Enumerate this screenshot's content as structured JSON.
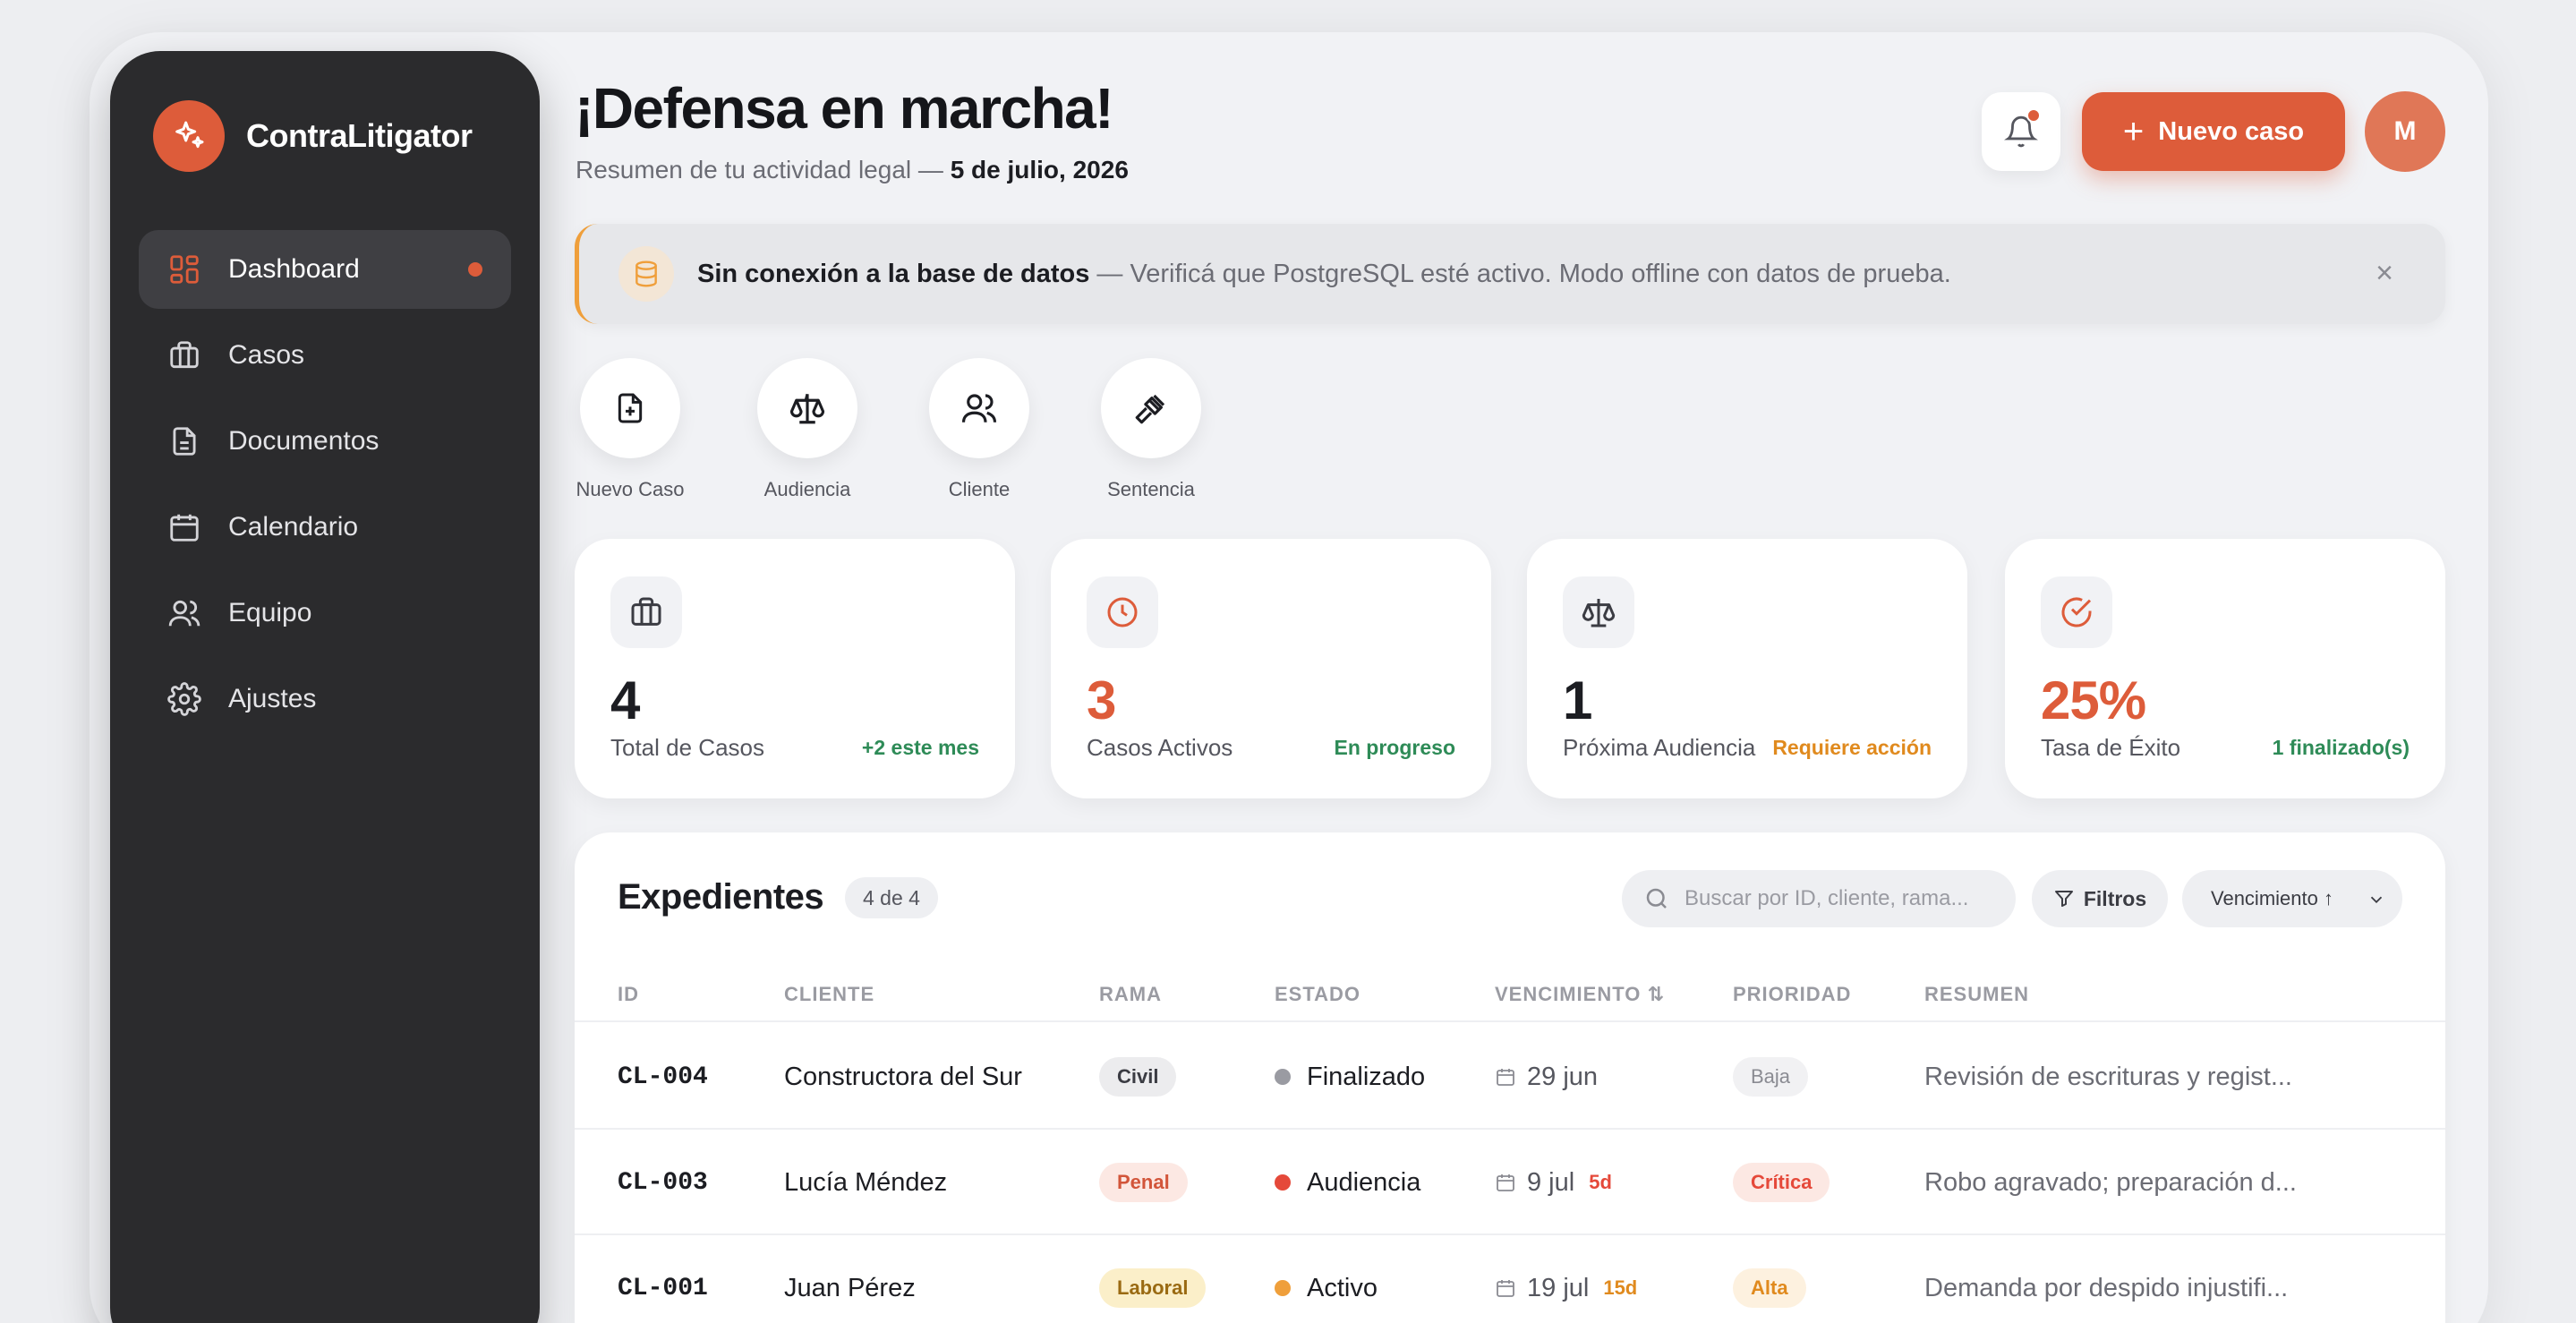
{
  "app": {
    "name": "ContraLitigator"
  },
  "sidebar": {
    "items": [
      {
        "label": "Dashboard",
        "icon": "dashboard-icon",
        "active": true
      },
      {
        "label": "Casos",
        "icon": "briefcase-icon"
      },
      {
        "label": "Documentos",
        "icon": "document-icon"
      },
      {
        "label": "Calendario",
        "icon": "calendar-icon"
      },
      {
        "label": "Equipo",
        "icon": "team-icon"
      },
      {
        "label": "Ajustes",
        "icon": "gear-icon"
      }
    ]
  },
  "header": {
    "title": "¡Defensa en marcha!",
    "subtitle_prefix": "Resumen de tu actividad legal — ",
    "date": "5 de julio, 2026",
    "new_case_label": "Nuevo caso",
    "avatar_initial": "M"
  },
  "alert": {
    "title": "Sin conexión a la base de datos",
    "message": " — Verificá que PostgreSQL esté activo. Modo offline con datos de prueba.",
    "close": "×"
  },
  "quick_actions": [
    {
      "label": "Nuevo Caso",
      "icon": "new-file-icon"
    },
    {
      "label": "Audiencia",
      "icon": "scale-icon"
    },
    {
      "label": "Cliente",
      "icon": "users-icon"
    },
    {
      "label": "Sentencia",
      "icon": "gavel-icon"
    }
  ],
  "stats": [
    {
      "value": "4",
      "label": "Total de Casos",
      "note": "+2 este mes",
      "note_color": "#2e8b57",
      "value_color": "#1c1d22",
      "icon": "briefcase-icon"
    },
    {
      "value": "3",
      "label": "Casos Activos",
      "note": "En progreso",
      "note_color": "#2e8b57",
      "value_color": "#dd5c3a",
      "icon": "clock-icon"
    },
    {
      "value": "1",
      "label": "Próxima Audiencia",
      "note": "Requiere acción",
      "note_color": "#e08a1e",
      "value_color": "#1c1d22",
      "icon": "scale-icon"
    },
    {
      "value": "25%",
      "label": "Tasa de Éxito",
      "note": "1 finalizado(s)",
      "note_color": "#2e8b57",
      "value_color": "#dd5c3a",
      "icon": "check-circle-icon"
    }
  ],
  "table": {
    "title": "Expedientes",
    "count": "4 de 4",
    "search_placeholder": "Buscar por ID, cliente, rama...",
    "filters_label": "Filtros",
    "sort_label": "Vencimiento ↑",
    "columns": [
      "ID",
      "CLIENTE",
      "RAMA",
      "ESTADO",
      "VENCIMIENTO ⇅",
      "PRIORIDAD",
      "RESUMEN"
    ],
    "rows": [
      {
        "id": "CL-004",
        "client": "Constructora del Sur",
        "branch": "Civil",
        "status": "Finalizado",
        "due": "29 jun",
        "days": "",
        "priority": "Baja",
        "summary": "Revisión de escrituras y regist..."
      },
      {
        "id": "CL-003",
        "client": "Lucía Méndez",
        "branch": "Penal",
        "status": "Audiencia",
        "due": "9 jul",
        "days": "5d",
        "priority": "Crítica",
        "summary": "Robo agravado; preparación d..."
      },
      {
        "id": "CL-001",
        "client": "Juan Pérez",
        "branch": "Laboral",
        "status": "Activo",
        "due": "19 jul",
        "days": "15d",
        "priority": "Alta",
        "summary": "Demanda por despido injustifi..."
      }
    ]
  },
  "colors": {
    "accent": "#dd5c3a",
    "sidebar": "#2b2b2d",
    "warning": "#ef9f3b",
    "success": "#2e8b57"
  }
}
